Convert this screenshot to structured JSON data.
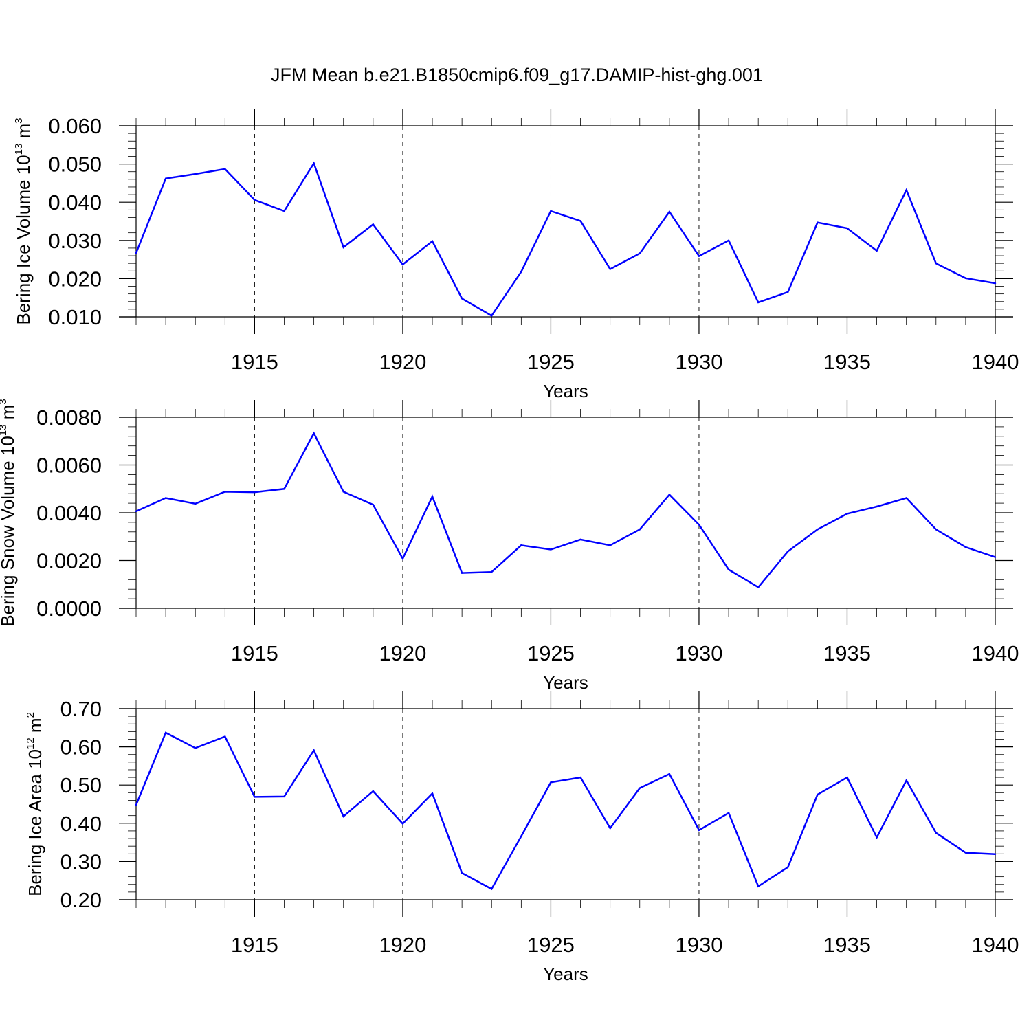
{
  "title": "JFM Mean b.e21.B1850cmip6.f09_g17.DAMIP-hist-ghg.001",
  "colors": {
    "line": "#0000ff",
    "axis": "#000000"
  },
  "chart_data": [
    {
      "type": "line",
      "xlabel": "Years",
      "ylabel": {
        "main": "Bering Ice Volume 10",
        "exp": "13",
        "unit": " m",
        "unit_exp": "3"
      },
      "xlim": [
        1911,
        1940
      ],
      "ylim": [
        0.01,
        0.06
      ],
      "x_ticks": [
        1915,
        1920,
        1925,
        1930,
        1935,
        1940
      ],
      "y_ticks": [
        "0.010",
        "0.020",
        "0.030",
        "0.040",
        "0.050",
        "0.060"
      ],
      "grid": "vertical-dashed",
      "x": [
        1911,
        1912,
        1913,
        1914,
        1915,
        1916,
        1917,
        1918,
        1919,
        1920,
        1921,
        1922,
        1923,
        1924,
        1925,
        1926,
        1927,
        1928,
        1929,
        1930,
        1931,
        1932,
        1933,
        1934,
        1935,
        1936,
        1937,
        1938,
        1939,
        1940
      ],
      "values": [
        0.0267,
        0.0462,
        0.0474,
        0.0487,
        0.0406,
        0.0377,
        0.0502,
        0.0282,
        0.0342,
        0.0237,
        0.0298,
        0.0148,
        0.0103,
        0.0218,
        0.0377,
        0.0351,
        0.0225,
        0.0266,
        0.0375,
        0.0259,
        0.03,
        0.0138,
        0.0165,
        0.0347,
        0.0332,
        0.0273,
        0.0432,
        0.024,
        0.0201,
        0.0188
      ]
    },
    {
      "type": "line",
      "xlabel": "Years",
      "ylabel": {
        "main": "Bering Snow Volume 10",
        "exp": "13",
        "unit": " m",
        "unit_exp": "3"
      },
      "xlim": [
        1911,
        1940
      ],
      "ylim": [
        0.0,
        0.008
      ],
      "x_ticks": [
        1915,
        1920,
        1925,
        1930,
        1935,
        1940
      ],
      "y_ticks": [
        "0.0000",
        "0.0020",
        "0.0040",
        "0.0060",
        "0.0080"
      ],
      "grid": "vertical-dashed",
      "x": [
        1911,
        1912,
        1913,
        1914,
        1915,
        1916,
        1917,
        1918,
        1919,
        1920,
        1921,
        1922,
        1923,
        1924,
        1925,
        1926,
        1927,
        1928,
        1929,
        1930,
        1931,
        1932,
        1933,
        1934,
        1935,
        1936,
        1937,
        1938,
        1939,
        1940
      ],
      "values": [
        0.00406,
        0.00462,
        0.00438,
        0.00488,
        0.00486,
        0.005,
        0.00733,
        0.00488,
        0.00434,
        0.00208,
        0.00468,
        0.00148,
        0.00152,
        0.00264,
        0.00246,
        0.00288,
        0.00264,
        0.0033,
        0.00476,
        0.0035,
        0.00162,
        0.00088,
        0.00238,
        0.0033,
        0.00396,
        0.00426,
        0.00462,
        0.0033,
        0.00256,
        0.00214
      ]
    },
    {
      "type": "line",
      "xlabel": "Years",
      "ylabel": {
        "main": "Bering Ice Area 10",
        "exp": "12",
        "unit": " m",
        "unit_exp": "2"
      },
      "xlim": [
        1911,
        1940
      ],
      "ylim": [
        0.2,
        0.7
      ],
      "x_ticks": [
        1915,
        1920,
        1925,
        1930,
        1935,
        1940
      ],
      "y_ticks": [
        "0.20",
        "0.30",
        "0.40",
        "0.50",
        "0.60",
        "0.70"
      ],
      "grid": "vertical-dashed",
      "x": [
        1911,
        1912,
        1913,
        1914,
        1915,
        1916,
        1917,
        1918,
        1919,
        1920,
        1921,
        1922,
        1923,
        1924,
        1925,
        1926,
        1927,
        1928,
        1929,
        1930,
        1931,
        1932,
        1933,
        1934,
        1935,
        1936,
        1937,
        1938,
        1939,
        1940
      ],
      "values": [
        0.448,
        0.637,
        0.597,
        0.627,
        0.469,
        0.47,
        0.591,
        0.418,
        0.484,
        0.399,
        0.478,
        0.27,
        0.228,
        0.366,
        0.507,
        0.52,
        0.387,
        0.492,
        0.529,
        0.382,
        0.427,
        0.235,
        0.285,
        0.475,
        0.52,
        0.363,
        0.512,
        0.375,
        0.323,
        0.319
      ]
    }
  ]
}
